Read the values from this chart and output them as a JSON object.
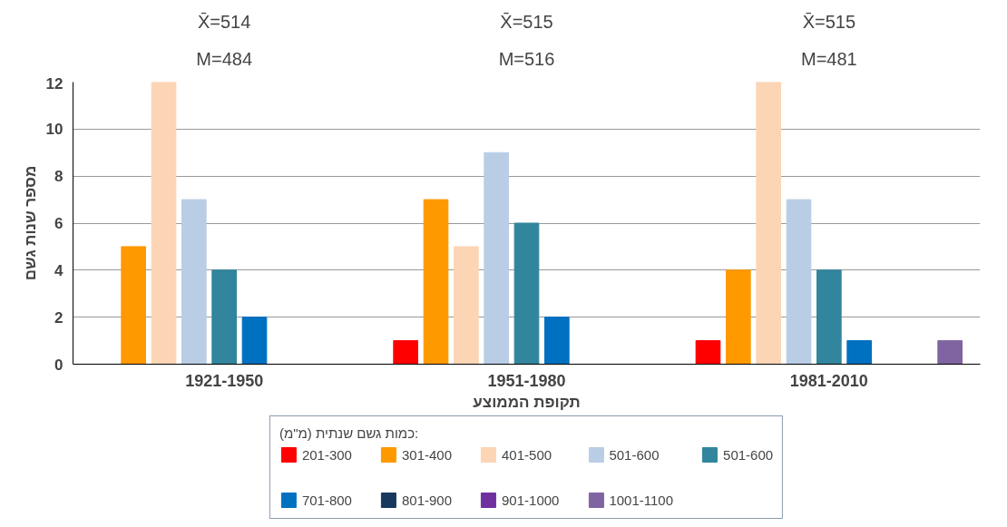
{
  "chart_data": {
    "type": "bar",
    "ylabel": "מספר שנות גשם",
    "xlabel": "תקופת הממוצע",
    "legend_title": "כמות גשם שנתית (מ\"מ):",
    "categories": [
      "1921-1950",
      "1951-1980",
      "1981-2010"
    ],
    "series": [
      {
        "name": "201-300",
        "color": "#ff0000",
        "values": [
          0,
          1,
          1
        ]
      },
      {
        "name": "301-400",
        "color": "#ff9900",
        "values": [
          5,
          7,
          4
        ]
      },
      {
        "name": "401-500",
        "color": "#fcd5b5",
        "values": [
          12,
          5,
          12
        ]
      },
      {
        "name": "501-600",
        "color": "#b9cde5",
        "values": [
          7,
          9,
          7
        ]
      },
      {
        "name": "501-600",
        "color": "#31859c",
        "values": [
          4,
          6,
          4
        ]
      },
      {
        "name": "701-800",
        "color": "#0070c0",
        "values": [
          2,
          2,
          1
        ]
      },
      {
        "name": "801-900",
        "color": "#17375e",
        "values": [
          0,
          0,
          0
        ]
      },
      {
        "name": "901-1000",
        "color": "#7030a0",
        "values": [
          0,
          0,
          0
        ]
      },
      {
        "name": "1001-1100",
        "color": "#8064a2",
        "values": [
          0,
          0,
          1
        ]
      }
    ],
    "ylim": [
      0,
      12
    ],
    "yticks": [
      0,
      2,
      4,
      6,
      8,
      10,
      12
    ],
    "grid": "y",
    "legend": "bottom",
    "annotations": [
      "X̄=514",
      "M=484",
      "X̄=515",
      "M=516",
      "X̄=515",
      "M=481"
    ]
  }
}
